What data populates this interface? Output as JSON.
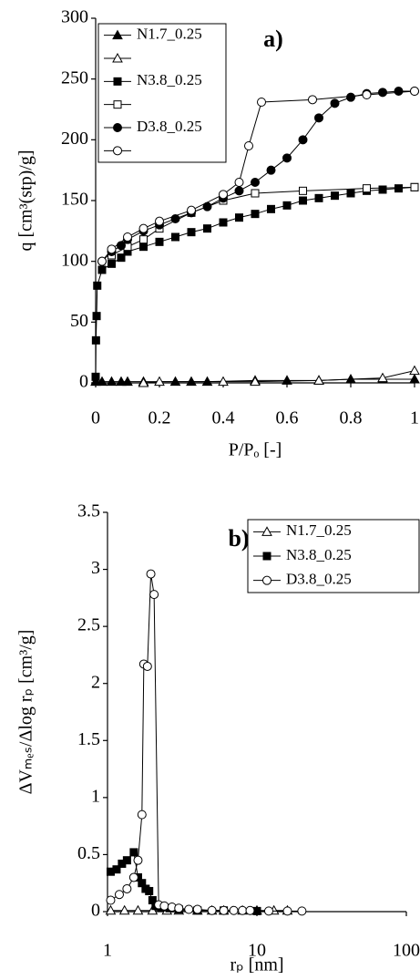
{
  "chart_data": [
    {
      "type": "line",
      "annotation": "a)",
      "x_label": "P/Pₒ [-]",
      "y_label": "q  [cm³(stp)/g]",
      "xlim": [
        0,
        1
      ],
      "xticks": [
        0,
        0.2,
        0.4,
        0.6,
        0.8,
        1
      ],
      "ylim": [
        0,
        300
      ],
      "yticks": [
        0,
        50,
        100,
        150,
        200,
        250,
        300
      ],
      "legend": "top-left",
      "series": [
        {
          "name": "N1.7_0.25",
          "color": "#000000",
          "marker": "triangle",
          "filled": true,
          "x": [
            0,
            0.02,
            0.05,
            0.08,
            0.1,
            0.15,
            0.25,
            0.3,
            0.35,
            0.5,
            0.6,
            0.7,
            0.8,
            0.9,
            1.0
          ],
          "values": [
            1,
            1,
            1,
            1,
            1,
            1,
            1,
            1,
            1,
            2,
            2,
            2,
            3,
            3,
            3
          ]
        },
        {
          "color": "#000000",
          "marker": "triangle",
          "filled": false,
          "x": [
            1.0,
            0.9,
            0.7,
            0.5,
            0.4,
            0.2,
            0.15
          ],
          "values": [
            10,
            4,
            2,
            1,
            1,
            1,
            0
          ]
        },
        {
          "name": "N3.8_0.25",
          "color": "#000000",
          "marker": "square",
          "filled": true,
          "x": [
            0,
            0.001,
            0.003,
            0.005,
            0.02,
            0.05,
            0.08,
            0.1,
            0.15,
            0.2,
            0.25,
            0.3,
            0.35,
            0.4,
            0.45,
            0.5,
            0.55,
            0.6,
            0.65,
            0.7,
            0.75,
            0.8,
            0.85,
            0.9,
            0.95,
            1.0
          ],
          "values": [
            5,
            35,
            55,
            80,
            93,
            98,
            103,
            108,
            112,
            116,
            120,
            124,
            127,
            132,
            136,
            139,
            143,
            146,
            150,
            152,
            154,
            156,
            158,
            159,
            160,
            161
          ]
        },
        {
          "color": "#000000",
          "marker": "square",
          "filled": false,
          "x": [
            1.0,
            0.85,
            0.65,
            0.5,
            0.4,
            0.3,
            0.2,
            0.15,
            0.1,
            0.05
          ],
          "values": [
            161,
            160,
            158,
            156,
            150,
            140,
            127,
            118,
            112,
            105
          ]
        },
        {
          "name": "D3.8_0.25",
          "color": "#000000",
          "marker": "circle",
          "filled": true,
          "x": [
            0.02,
            0.05,
            0.08,
            0.1,
            0.15,
            0.2,
            0.25,
            0.3,
            0.35,
            0.4,
            0.45,
            0.5,
            0.55,
            0.6,
            0.65,
            0.7,
            0.75,
            0.8,
            0.85,
            0.9,
            0.95,
            1.0
          ],
          "values": [
            100,
            108,
            113,
            118,
            125,
            130,
            135,
            140,
            145,
            152,
            158,
            165,
            175,
            185,
            200,
            218,
            230,
            235,
            238,
            239,
            240,
            240
          ]
        },
        {
          "color": "#000000",
          "marker": "circle",
          "filled": false,
          "x": [
            1.0,
            0.85,
            0.68,
            0.52,
            0.48,
            0.45,
            0.4,
            0.3,
            0.2,
            0.15,
            0.1,
            0.05,
            0.02
          ],
          "values": [
            240,
            237,
            233,
            231,
            195,
            165,
            155,
            142,
            133,
            127,
            120,
            110,
            100
          ]
        }
      ]
    },
    {
      "type": "line",
      "annotation": "b)",
      "x_label": "rₚ [nm]",
      "y_label": "ΔVₘₑₛ/Δlog rₚ [cm³/g]",
      "xscale": "log",
      "xlim": [
        1,
        100
      ],
      "xticks": [
        1,
        10,
        100
      ],
      "ylim": [
        0,
        3.5
      ],
      "yticks": [
        0,
        0.5,
        1,
        1.5,
        2,
        2.5,
        3,
        3.5
      ],
      "legend": "top-right",
      "series": [
        {
          "name": "N1.7_0.25",
          "color": "#000000",
          "marker": "triangle",
          "filled": false,
          "x": [
            1.05,
            1.3,
            1.6,
            2.0,
            2.5,
            3,
            4,
            5,
            6,
            8,
            10,
            13,
            16
          ],
          "values": [
            0.01,
            0.01,
            0.01,
            0.01,
            0.01,
            0.01,
            0.01,
            0.01,
            0.01,
            0.01,
            0.01,
            0.01,
            0.01
          ]
        },
        {
          "name": "N3.8_0.25",
          "color": "#000000",
          "marker": "square",
          "filled": true,
          "x": [
            1.05,
            1.15,
            1.25,
            1.35,
            1.5,
            1.6,
            1.7,
            1.8,
            1.9,
            2.0,
            2.1,
            2.3,
            2.6,
            3,
            4,
            6,
            10
          ],
          "values": [
            0.35,
            0.37,
            0.42,
            0.45,
            0.52,
            0.3,
            0.25,
            0.2,
            0.18,
            0.1,
            0.05,
            0.04,
            0.03,
            0.02,
            0.01,
            0.01,
            0.005
          ]
        },
        {
          "name": "D3.8_0.25",
          "color": "#000000",
          "marker": "circle",
          "filled": false,
          "x": [
            1.05,
            1.2,
            1.35,
            1.5,
            1.6,
            1.7,
            1.75,
            1.85,
            1.95,
            2.05,
            2.2,
            2.4,
            2.7,
            3,
            3.5,
            4,
            5,
            6,
            7,
            8,
            9,
            12,
            16,
            20
          ],
          "values": [
            0.1,
            0.15,
            0.2,
            0.3,
            0.45,
            0.85,
            2.17,
            2.15,
            2.96,
            2.78,
            0.06,
            0.05,
            0.04,
            0.03,
            0.02,
            0.02,
            0.01,
            0.01,
            0.01,
            0.01,
            0.01,
            0.005,
            0.005,
            0.005
          ]
        }
      ]
    }
  ]
}
